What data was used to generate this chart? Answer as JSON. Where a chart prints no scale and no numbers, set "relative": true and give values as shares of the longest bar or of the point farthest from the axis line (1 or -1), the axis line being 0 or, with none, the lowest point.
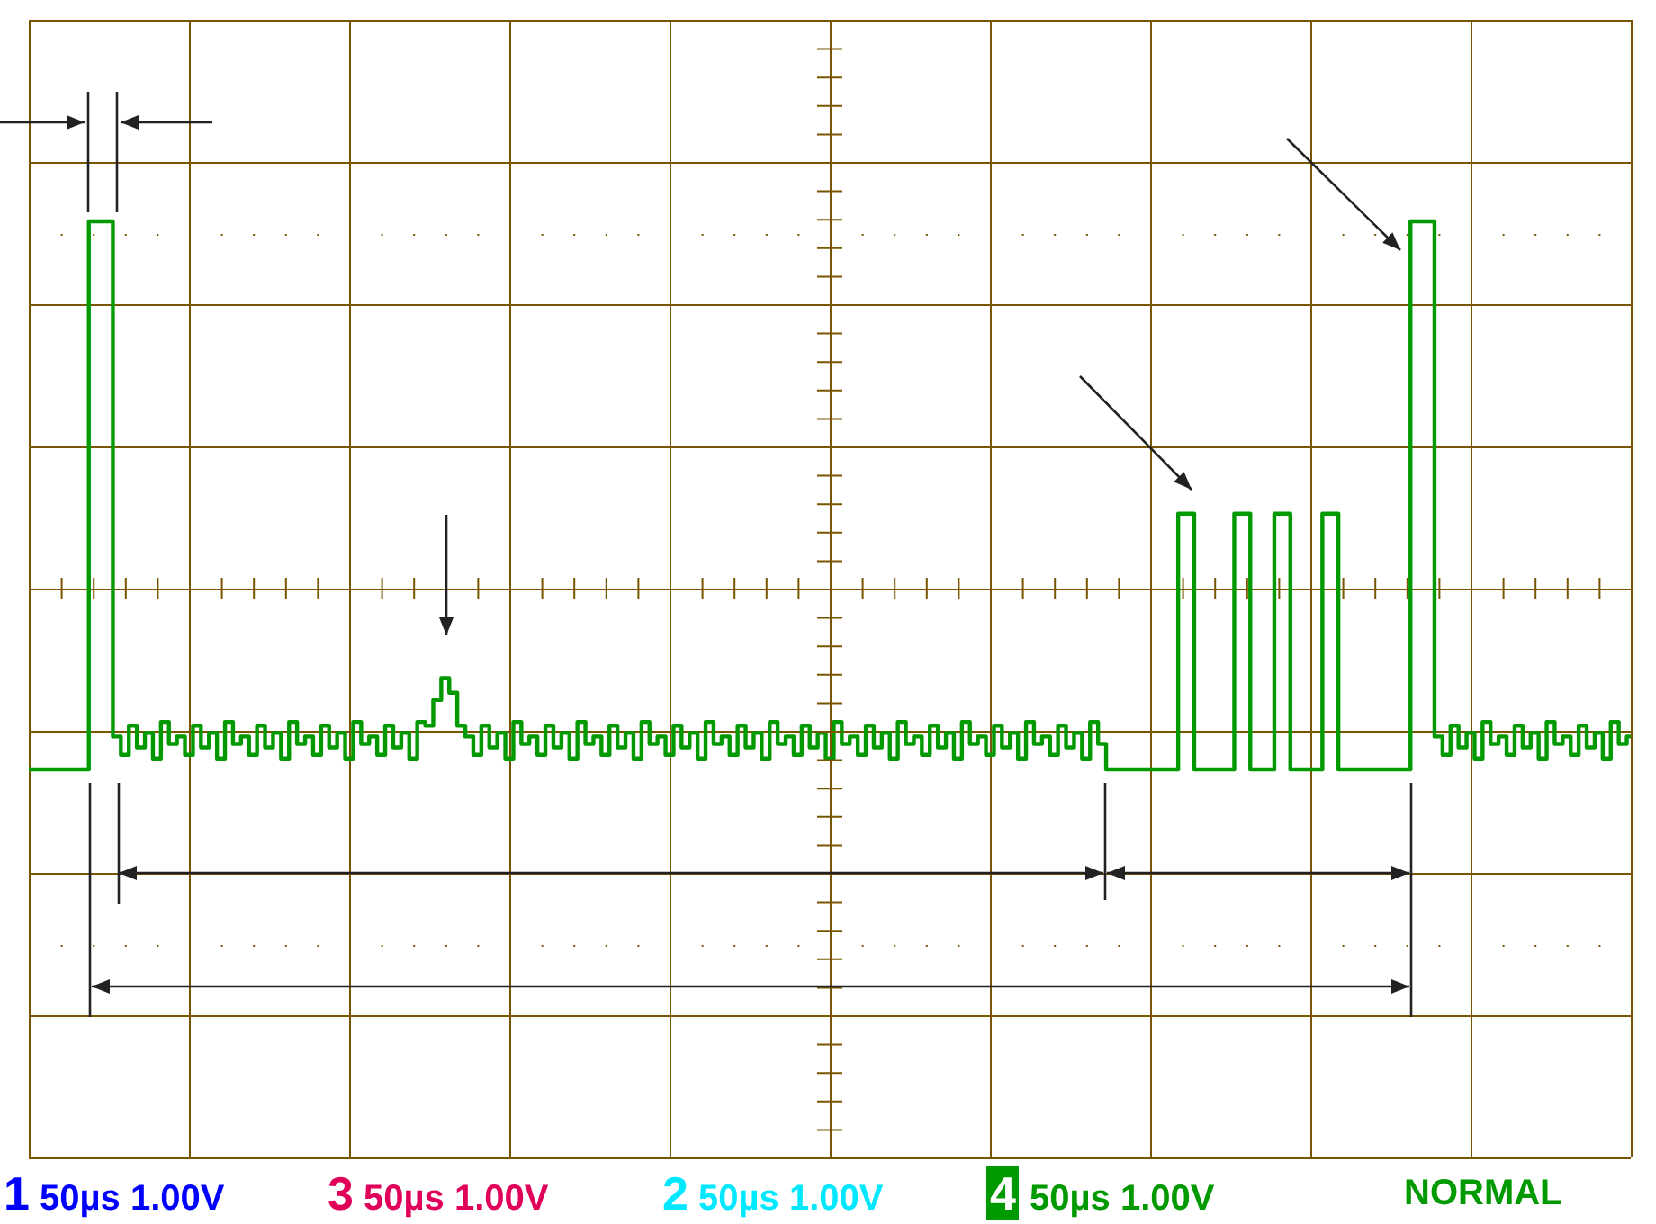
{
  "chart_data": {
    "type": "step",
    "categories": [
      null,
      null,
      null,
      null,
      null,
      null,
      null,
      null,
      null,
      null,
      null,
      null,
      null,
      null,
      null,
      null,
      null,
      null,
      null,
      null,
      null,
      null,
      null,
      null,
      null,
      null,
      null,
      null,
      null,
      null,
      null,
      null,
      null,
      null,
      null,
      null,
      null,
      null,
      null,
      null,
      null,
      null,
      null,
      null,
      null,
      null,
      null,
      null,
      null,
      null,
      null,
      null,
      null,
      null,
      null,
      null,
      null,
      null,
      null,
      null,
      null,
      null,
      null,
      null,
      null,
      null,
      null,
      null,
      null,
      null,
      null,
      null,
      null,
      null,
      null,
      null,
      null,
      null,
      null,
      null,
      null,
      null,
      null,
      null,
      null,
      null,
      null,
      null,
      null,
      null,
      null,
      null,
      null,
      null,
      null,
      null,
      null,
      null,
      null,
      null,
      null,
      null,
      null,
      null,
      null,
      null,
      null,
      null,
      null,
      null,
      null,
      null,
      null,
      null,
      null,
      null,
      null,
      null,
      null,
      null,
      null,
      null,
      null,
      null,
      null,
      null,
      null,
      null,
      null,
      null,
      null,
      null,
      null,
      null,
      null,
      null,
      null,
      null,
      null,
      null,
      null,
      null,
      null,
      null,
      null,
      null,
      null,
      null,
      null,
      null,
      null,
      null,
      null,
      null,
      null,
      null,
      null,
      null,
      null,
      null,
      null,
      null,
      null,
      null,
      null,
      null,
      null,
      null,
      null,
      null,
      null,
      null,
      null,
      null,
      null,
      null,
      null,
      null,
      null,
      null,
      null,
      null,
      null,
      null,
      null,
      null,
      null,
      null,
      null,
      null,
      null,
      null,
      null,
      null,
      null,
      null,
      null,
      null,
      null,
      null,
      null
    ],
    "series": [
      {
        "color": "#009900",
        "values": [
          -0.5,
          -0.5,
          -0.5,
          -0.5,
          -0.5,
          -0.5,
          -0.5,
          -0.5,
          1,
          1,
          1,
          -0.41,
          -0.46,
          -0.38,
          -0.44,
          -0.4,
          -0.47,
          -0.37,
          -0.43,
          -0.41,
          -0.46,
          -0.38,
          -0.44,
          -0.4,
          -0.47,
          -0.37,
          -0.43,
          -0.41,
          -0.46,
          -0.38,
          -0.44,
          -0.4,
          -0.47,
          -0.37,
          -0.43,
          -0.41,
          -0.46,
          -0.38,
          -0.44,
          -0.4,
          -0.47,
          -0.37,
          -0.43,
          -0.41,
          -0.46,
          -0.38,
          -0.44,
          -0.4,
          -0.47,
          -0.37,
          -0.38,
          -0.31,
          -0.25,
          -0.29,
          -0.38,
          -0.41,
          -0.46,
          -0.38,
          -0.44,
          -0.4,
          -0.47,
          -0.37,
          -0.43,
          -0.41,
          -0.46,
          -0.38,
          -0.44,
          -0.4,
          -0.47,
          -0.37,
          -0.43,
          -0.41,
          -0.46,
          -0.38,
          -0.44,
          -0.4,
          -0.47,
          -0.37,
          -0.43,
          -0.41,
          -0.46,
          -0.38,
          -0.44,
          -0.4,
          -0.47,
          -0.37,
          -0.43,
          -0.41,
          -0.46,
          -0.38,
          -0.44,
          -0.4,
          -0.47,
          -0.37,
          -0.43,
          -0.41,
          -0.46,
          -0.38,
          -0.44,
          -0.4,
          -0.47,
          -0.37,
          -0.43,
          -0.41,
          -0.46,
          -0.38,
          -0.44,
          -0.4,
          -0.47,
          -0.37,
          -0.43,
          -0.41,
          -0.46,
          -0.38,
          -0.44,
          -0.4,
          -0.47,
          -0.37,
          -0.43,
          -0.41,
          -0.46,
          -0.38,
          -0.44,
          -0.4,
          -0.47,
          -0.37,
          -0.43,
          -0.41,
          -0.46,
          -0.38,
          -0.44,
          -0.4,
          -0.47,
          -0.37,
          -0.43,
          -0.5,
          -0.5,
          -0.5,
          -0.5,
          -0.5,
          -0.5,
          -0.5,
          -0.5,
          -0.5,
          0.2,
          0.2,
          -0.5,
          -0.5,
          -0.5,
          -0.5,
          -0.5,
          0.2,
          0.2,
          -0.5,
          -0.5,
          -0.5,
          0.2,
          0.2,
          -0.5,
          -0.5,
          -0.5,
          -0.5,
          0.2,
          0.2,
          -0.5,
          -0.5,
          -0.5,
          -0.5,
          -0.5,
          -0.5,
          -0.5,
          -0.5,
          -0.5,
          1,
          1,
          1,
          -0.41,
          -0.46,
          -0.38,
          -0.44,
          -0.4,
          -0.47,
          -0.37,
          -0.43,
          -0.41,
          -0.46,
          -0.38,
          -0.44,
          -0.4,
          -0.47,
          -0.37,
          -0.43,
          -0.41,
          -0.46,
          -0.38,
          -0.44,
          -0.4,
          -0.47,
          -0.37,
          -0.43,
          -0.41
        ]
      }
    ],
    "relative": true,
    "grid": true,
    "legend": false,
    "marker": "none",
    "annotations": [
      "1 50µs 1.00V",
      "3 50µs 1.00V",
      "2 50µs 1.00V",
      "4 50µs 1.00V",
      "NORMAL"
    ]
  }
}
